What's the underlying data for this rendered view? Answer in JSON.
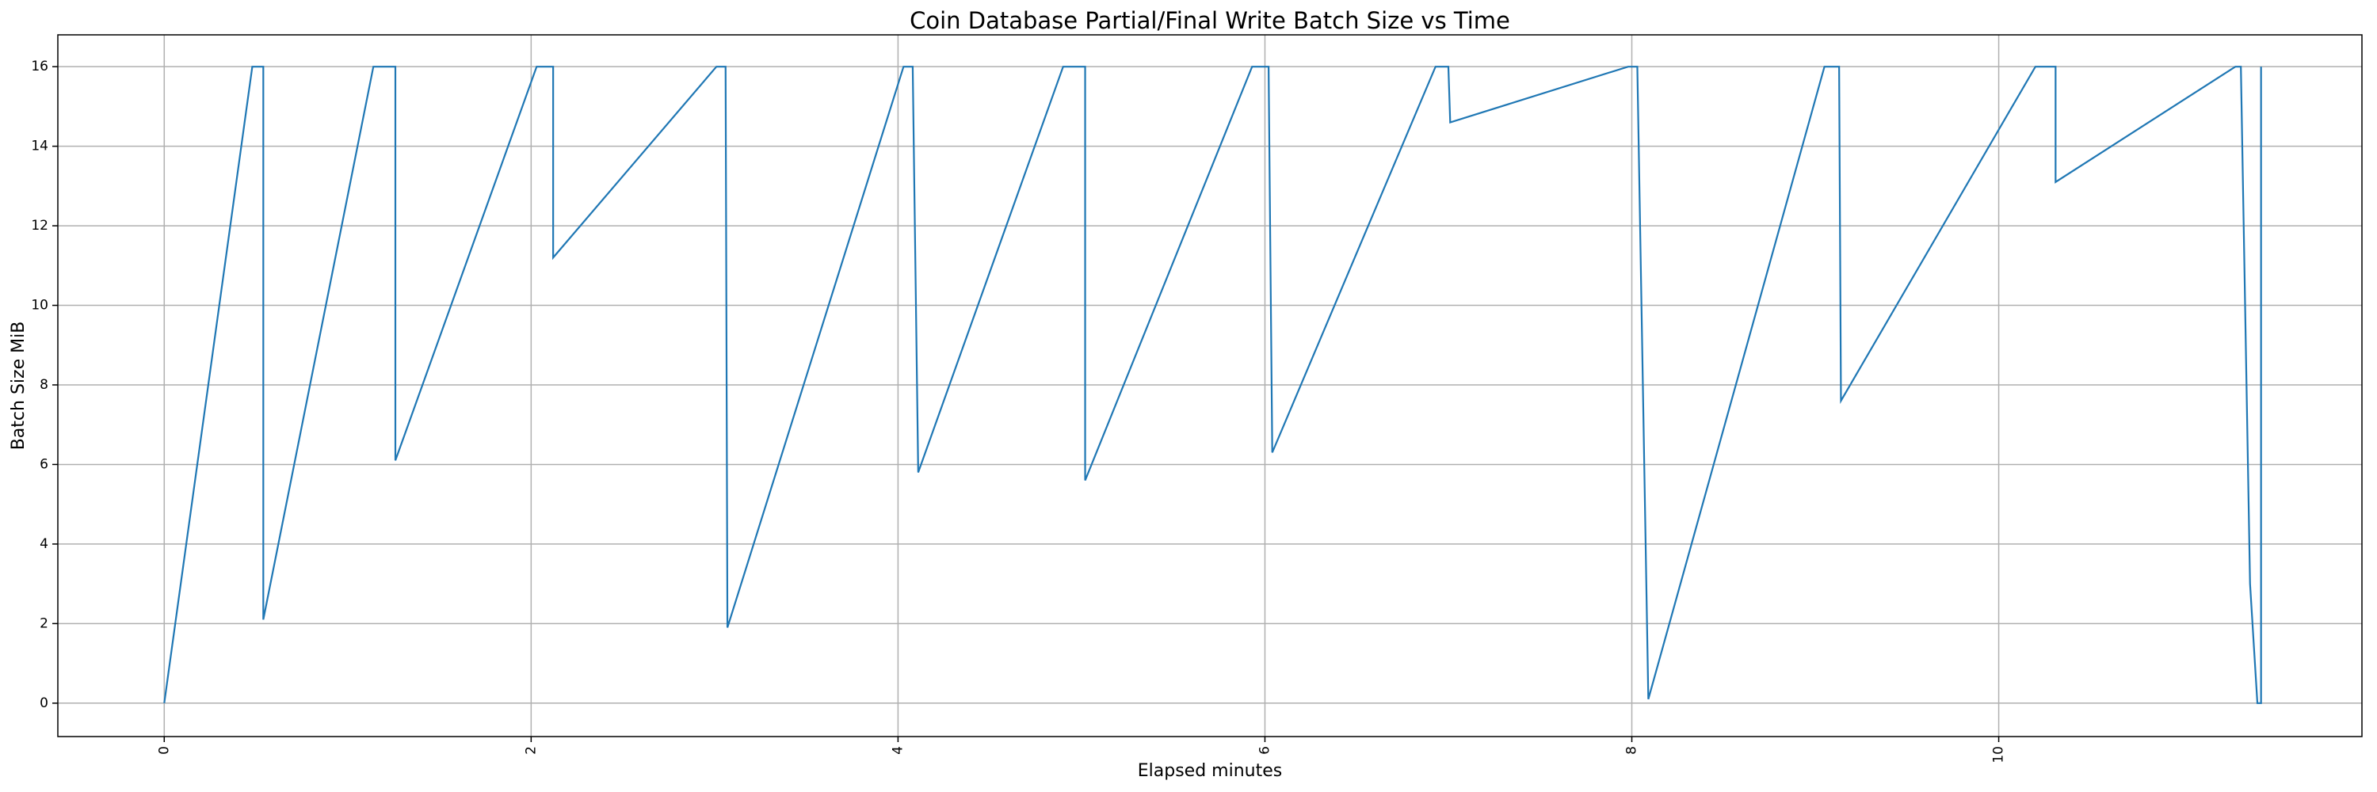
{
  "chart_data": {
    "type": "line",
    "title": "Coin Database Partial/Final Write Batch Size vs Time",
    "x_label": "Elapsed minutes",
    "y_label": "Batch Size MiB",
    "x": [
      0,
      0.48,
      0.54,
      0.54,
      1.14,
      1.26,
      1.26,
      2.03,
      2.12,
      2.12,
      3.01,
      3.06,
      3.07,
      4.03,
      4.08,
      4.11,
      4.9,
      5.02,
      5.02,
      5.93,
      6.02,
      6.04,
      6.93,
      7.0,
      7.01,
      7.98,
      8.03,
      8.09,
      9.05,
      9.13,
      9.14,
      10.2,
      10.31,
      10.31,
      11.29,
      11.32,
      11.37,
      11.41,
      11.43,
      11.43
    ],
    "values": [
      0,
      16,
      16,
      2.1,
      16,
      16,
      6.1,
      16,
      16,
      11.2,
      16,
      16,
      1.9,
      16,
      16,
      5.8,
      16,
      16,
      5.6,
      16,
      16,
      6.3,
      16,
      16,
      14.6,
      16,
      16,
      0.1,
      16,
      16,
      7.6,
      16,
      16,
      13.1,
      16,
      16,
      3,
      0,
      0,
      16
    ],
    "color": "#1f77b4",
    "xlim": [
      -0.58,
      11.98
    ],
    "ylim": [
      -0.84,
      16.8
    ],
    "xticks": [
      0,
      2,
      4,
      6,
      8,
      10
    ],
    "yticks": [
      0,
      2,
      4,
      6,
      8,
      10,
      12,
      14,
      16
    ],
    "grid": true
  }
}
